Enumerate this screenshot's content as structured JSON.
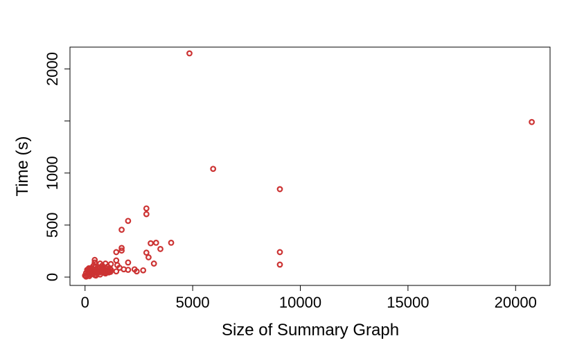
{
  "chart_data": {
    "type": "scatter",
    "title": "",
    "xlabel": "Size of Summary Graph",
    "ylabel": "Time (s)",
    "xlim": [
      -700,
      21600
    ],
    "ylim": [
      -80,
      2210
    ],
    "x_ticks": [
      0,
      5000,
      10000,
      15000,
      20000
    ],
    "x_tick_labels": [
      "0",
      "5000",
      "10000",
      "15000",
      "20000"
    ],
    "y_ticks": [
      0,
      500,
      1000,
      1500,
      2000
    ],
    "y_tick_labels": [
      "0",
      "500",
      "1000",
      "",
      "2000"
    ],
    "grid": false,
    "legend": "none",
    "marker": "open-circle",
    "color": "#cc3333",
    "points": [
      [
        4850,
        2150
      ],
      [
        20750,
        1490
      ],
      [
        5950,
        1040
      ],
      [
        9050,
        845
      ],
      [
        2850,
        660
      ],
      [
        2850,
        605
      ],
      [
        2000,
        540
      ],
      [
        1700,
        455
      ],
      [
        4000,
        330
      ],
      [
        3300,
        330
      ],
      [
        3050,
        325
      ],
      [
        1700,
        280
      ],
      [
        1700,
        255
      ],
      [
        3500,
        270
      ],
      [
        1450,
        240
      ],
      [
        2850,
        235
      ],
      [
        2950,
        190
      ],
      [
        9050,
        240
      ],
      [
        9050,
        120
      ],
      [
        3200,
        130
      ],
      [
        2000,
        140
      ],
      [
        1450,
        160
      ],
      [
        1500,
        115
      ],
      [
        1600,
        90
      ],
      [
        1800,
        75
      ],
      [
        2000,
        70
      ],
      [
        2300,
        75
      ],
      [
        2400,
        55
      ],
      [
        2700,
        65
      ],
      [
        1450,
        55
      ],
      [
        1200,
        125
      ],
      [
        1200,
        70
      ],
      [
        1100,
        45
      ],
      [
        950,
        130
      ],
      [
        850,
        85
      ],
      [
        700,
        130
      ],
      [
        450,
        165
      ],
      [
        450,
        140
      ],
      [
        400,
        110
      ],
      [
        300,
        90
      ],
      [
        200,
        80
      ],
      [
        100,
        70
      ],
      [
        50,
        40
      ],
      [
        0,
        15
      ],
      [
        50,
        5
      ],
      [
        100,
        20
      ],
      [
        150,
        35
      ],
      [
        200,
        10
      ],
      [
        250,
        55
      ],
      [
        300,
        30
      ],
      [
        350,
        60
      ],
      [
        400,
        45
      ],
      [
        450,
        20
      ],
      [
        500,
        75
      ],
      [
        550,
        40
      ],
      [
        600,
        95
      ],
      [
        650,
        50
      ],
      [
        700,
        25
      ],
      [
        750,
        70
      ],
      [
        800,
        110
      ],
      [
        850,
        45
      ],
      [
        900,
        60
      ],
      [
        950,
        35
      ],
      [
        1000,
        80
      ],
      [
        1050,
        100
      ],
      [
        1100,
        60
      ],
      [
        150,
        50
      ],
      [
        250,
        25
      ],
      [
        350,
        80
      ],
      [
        500,
        15
      ],
      [
        600,
        55
      ],
      [
        700,
        85
      ],
      [
        800,
        65
      ],
      [
        900,
        40
      ],
      [
        1000,
        55
      ],
      [
        1150,
        85
      ],
      [
        120,
        60
      ],
      [
        180,
        85
      ],
      [
        280,
        70
      ],
      [
        380,
        30
      ],
      [
        480,
        95
      ],
      [
        580,
        65
      ],
      [
        680,
        45
      ],
      [
        780,
        90
      ],
      [
        880,
        75
      ],
      [
        980,
        45
      ],
      [
        1080,
        70
      ],
      [
        1180,
        50
      ]
    ]
  }
}
